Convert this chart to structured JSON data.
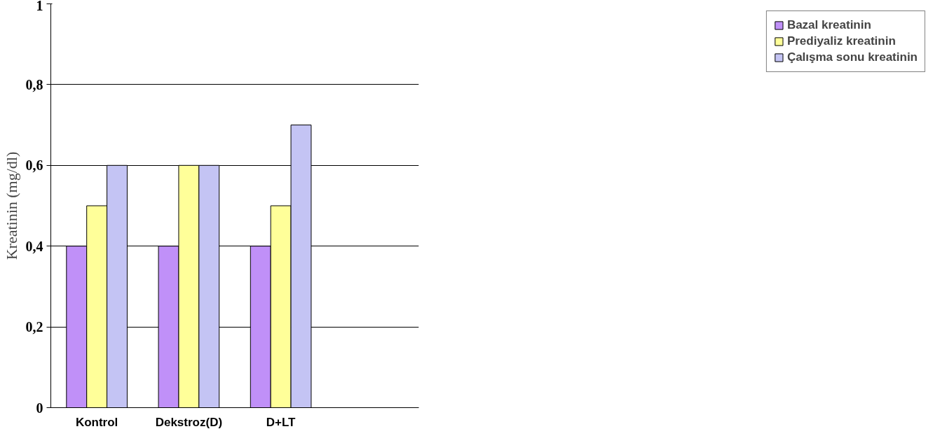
{
  "chart_data": {
    "type": "bar",
    "ylabel": "Kreatinin (mg/dl)",
    "categories": [
      "Kontrol",
      "Dekstroz(D)",
      "D+LT",
      null
    ],
    "series": [
      {
        "name": "Bazal kreatinin",
        "color": "#c090f8",
        "values": [
          0.4,
          0.4,
          0.4,
          null
        ]
      },
      {
        "name": "Prediyaliz kreatinin",
        "color": "#ffff99",
        "values": [
          0.5,
          0.6,
          0.5,
          null
        ]
      },
      {
        "name": "Çalışma sonu kreatinin",
        "color": "#c4c4f4",
        "values": [
          0.6,
          0.6,
          0.7,
          null
        ]
      }
    ],
    "ylim": [
      0,
      1
    ],
    "yticks": [
      0,
      {
        "value": 0.2,
        "label": "0,2"
      },
      {
        "value": 0.4,
        "label": "0,4"
      },
      {
        "value": 0.6,
        "label": "0,6"
      },
      {
        "value": 0.8,
        "label": "0,8"
      },
      1
    ],
    "grid": "y",
    "legend": "right"
  }
}
